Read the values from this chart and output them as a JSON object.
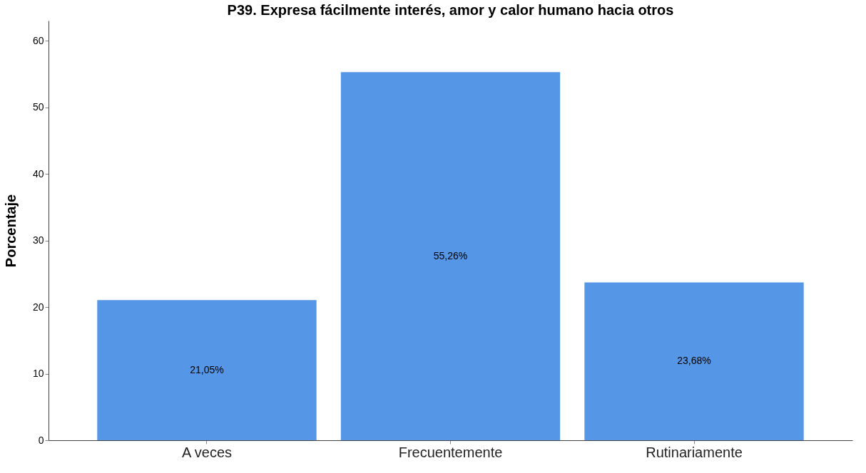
{
  "chart_data": {
    "type": "bar",
    "title": "P39. Expresa fácilmente interés, amor y calor humano hacia otros",
    "ylabel": "Porcentaje",
    "categories": [
      "A veces",
      "Frecuentemente",
      "Rutinariamente"
    ],
    "values": [
      21.05,
      55.26,
      23.68
    ],
    "value_labels": [
      "21,05%",
      "55,26%",
      "23,68%"
    ],
    "color": "#5596e6",
    "ylim": [
      0,
      63
    ],
    "yticks": [
      0,
      10,
      20,
      30,
      40,
      50,
      60
    ],
    "grid": false
  }
}
